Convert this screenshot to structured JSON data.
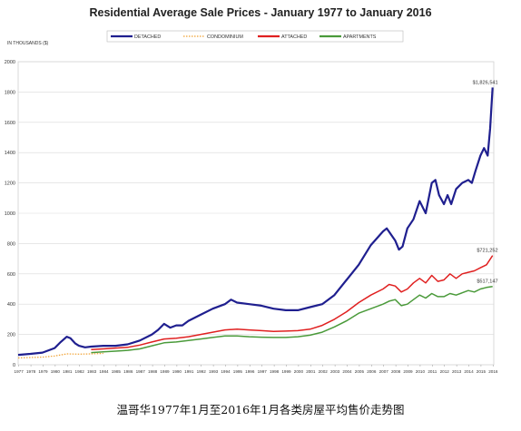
{
  "chart_data": {
    "type": "line",
    "title": "Residential Average Sale Prices  -  January 1977 to January 2016",
    "ylabel": "IN THOUSANDS ($)",
    "xlabel": "",
    "ylim": [
      0,
      2000
    ],
    "yticks": [
      0,
      200,
      400,
      600,
      800,
      1000,
      1200,
      1400,
      1600,
      1800,
      2000
    ],
    "xlim": [
      1977,
      2016.1
    ],
    "xtick_labels": [
      "1977",
      "1978",
      "1979",
      "1980",
      "1981",
      "1982",
      "1983",
      "1984",
      "1985",
      "1986",
      "1987",
      "1988",
      "1989",
      "1990",
      "1991",
      "1992",
      "1993",
      "1994",
      "1995",
      "1996",
      "1997",
      "1998",
      "1999",
      "2000",
      "2001",
      "2002",
      "2003",
      "2004",
      "2005",
      "2006",
      "2007",
      "2008",
      "2009",
      "2010",
      "2011",
      "2012",
      "2013",
      "2014",
      "2015",
      "2016"
    ],
    "grid": true,
    "legend_position": "top",
    "series": [
      {
        "name": "DETACHED",
        "color": "#1f1f8f",
        "style": "solid",
        "end_label": "$1,826,541",
        "x": [
          1977,
          1978,
          1979,
          1980,
          1980.5,
          1981,
          1981.3,
          1981.7,
          1982,
          1982.5,
          1983,
          1984,
          1985,
          1986,
          1987,
          1988,
          1988.5,
          1989,
          1989.5,
          1990,
          1990.5,
          1991,
          1992,
          1993,
          1994,
          1994.5,
          1995,
          1996,
          1997,
          1998,
          1999,
          2000,
          2001,
          2002,
          2002.5,
          2003,
          2004,
          2005,
          2006,
          2007,
          2007.3,
          2008,
          2008.3,
          2008.6,
          2009,
          2009.5,
          2010,
          2010.5,
          2011,
          2011.3,
          2011.6,
          2012,
          2012.3,
          2012.6,
          2013,
          2013.5,
          2014,
          2014.3,
          2014.6,
          2015,
          2015.3,
          2015.6,
          2015.8,
          2016
        ],
        "y": [
          65,
          72,
          80,
          110,
          150,
          185,
          175,
          140,
          125,
          115,
          120,
          125,
          125,
          135,
          160,
          200,
          230,
          270,
          245,
          260,
          260,
          290,
          330,
          370,
          400,
          430,
          410,
          400,
          390,
          370,
          360,
          360,
          380,
          400,
          430,
          460,
          560,
          660,
          790,
          880,
          900,
          820,
          760,
          780,
          900,
          960,
          1080,
          1000,
          1200,
          1220,
          1120,
          1060,
          1120,
          1060,
          1160,
          1200,
          1220,
          1200,
          1280,
          1380,
          1430,
          1380,
          1560,
          1830
        ]
      },
      {
        "name": "CONDOMINIUM",
        "color": "#f0a030",
        "style": "dotted",
        "end_label": "",
        "x": [
          1977,
          1978,
          1979,
          1980,
          1981,
          1982,
          1983,
          1984
        ],
        "y": [
          45,
          48,
          50,
          58,
          72,
          70,
          72,
          75
        ]
      },
      {
        "name": "ATTACHED",
        "color": "#e02020",
        "style": "solid",
        "end_label": "$721,252",
        "x": [
          1983,
          1984,
          1985,
          1986,
          1987,
          1988,
          1989,
          1990,
          1991,
          1992,
          1993,
          1994,
          1995,
          1996,
          1997,
          1998,
          1999,
          2000,
          2001,
          2002,
          2003,
          2004,
          2005,
          2006,
          2007,
          2007.5,
          2008,
          2008.5,
          2009,
          2009.5,
          2010,
          2010.5,
          2011,
          2011.5,
          2012,
          2012.5,
          2013,
          2013.5,
          2014,
          2014.5,
          2015,
          2015.5,
          2016
        ],
        "y": [
          100,
          105,
          110,
          115,
          130,
          150,
          170,
          175,
          185,
          200,
          215,
          230,
          235,
          230,
          225,
          220,
          222,
          225,
          235,
          260,
          300,
          350,
          410,
          460,
          500,
          530,
          520,
          480,
          500,
          540,
          570,
          540,
          590,
          550,
          560,
          600,
          570,
          600,
          610,
          620,
          640,
          660,
          721
        ]
      },
      {
        "name": "APARTMENTS",
        "color": "#4a9a3a",
        "style": "solid",
        "end_label": "$517,147",
        "x": [
          1983,
          1984,
          1985,
          1986,
          1987,
          1988,
          1989,
          1990,
          1991,
          1992,
          1993,
          1994,
          1995,
          1996,
          1997,
          1998,
          1999,
          2000,
          2001,
          2002,
          2003,
          2004,
          2005,
          2006,
          2007,
          2007.5,
          2008,
          2008.5,
          2009,
          2009.5,
          2010,
          2010.5,
          2011,
          2011.5,
          2012,
          2012.5,
          2013,
          2013.5,
          2014,
          2014.5,
          2015,
          2015.5,
          2016
        ],
        "y": [
          80,
          85,
          90,
          95,
          105,
          125,
          145,
          150,
          160,
          170,
          180,
          190,
          190,
          185,
          182,
          180,
          180,
          185,
          195,
          215,
          250,
          290,
          340,
          370,
          400,
          420,
          430,
          390,
          400,
          430,
          460,
          440,
          470,
          450,
          450,
          470,
          460,
          475,
          490,
          480,
          500,
          510,
          517
        ]
      }
    ]
  },
  "caption": "温哥华1977年1月至2016年1月各类房屋平均售价走势图"
}
